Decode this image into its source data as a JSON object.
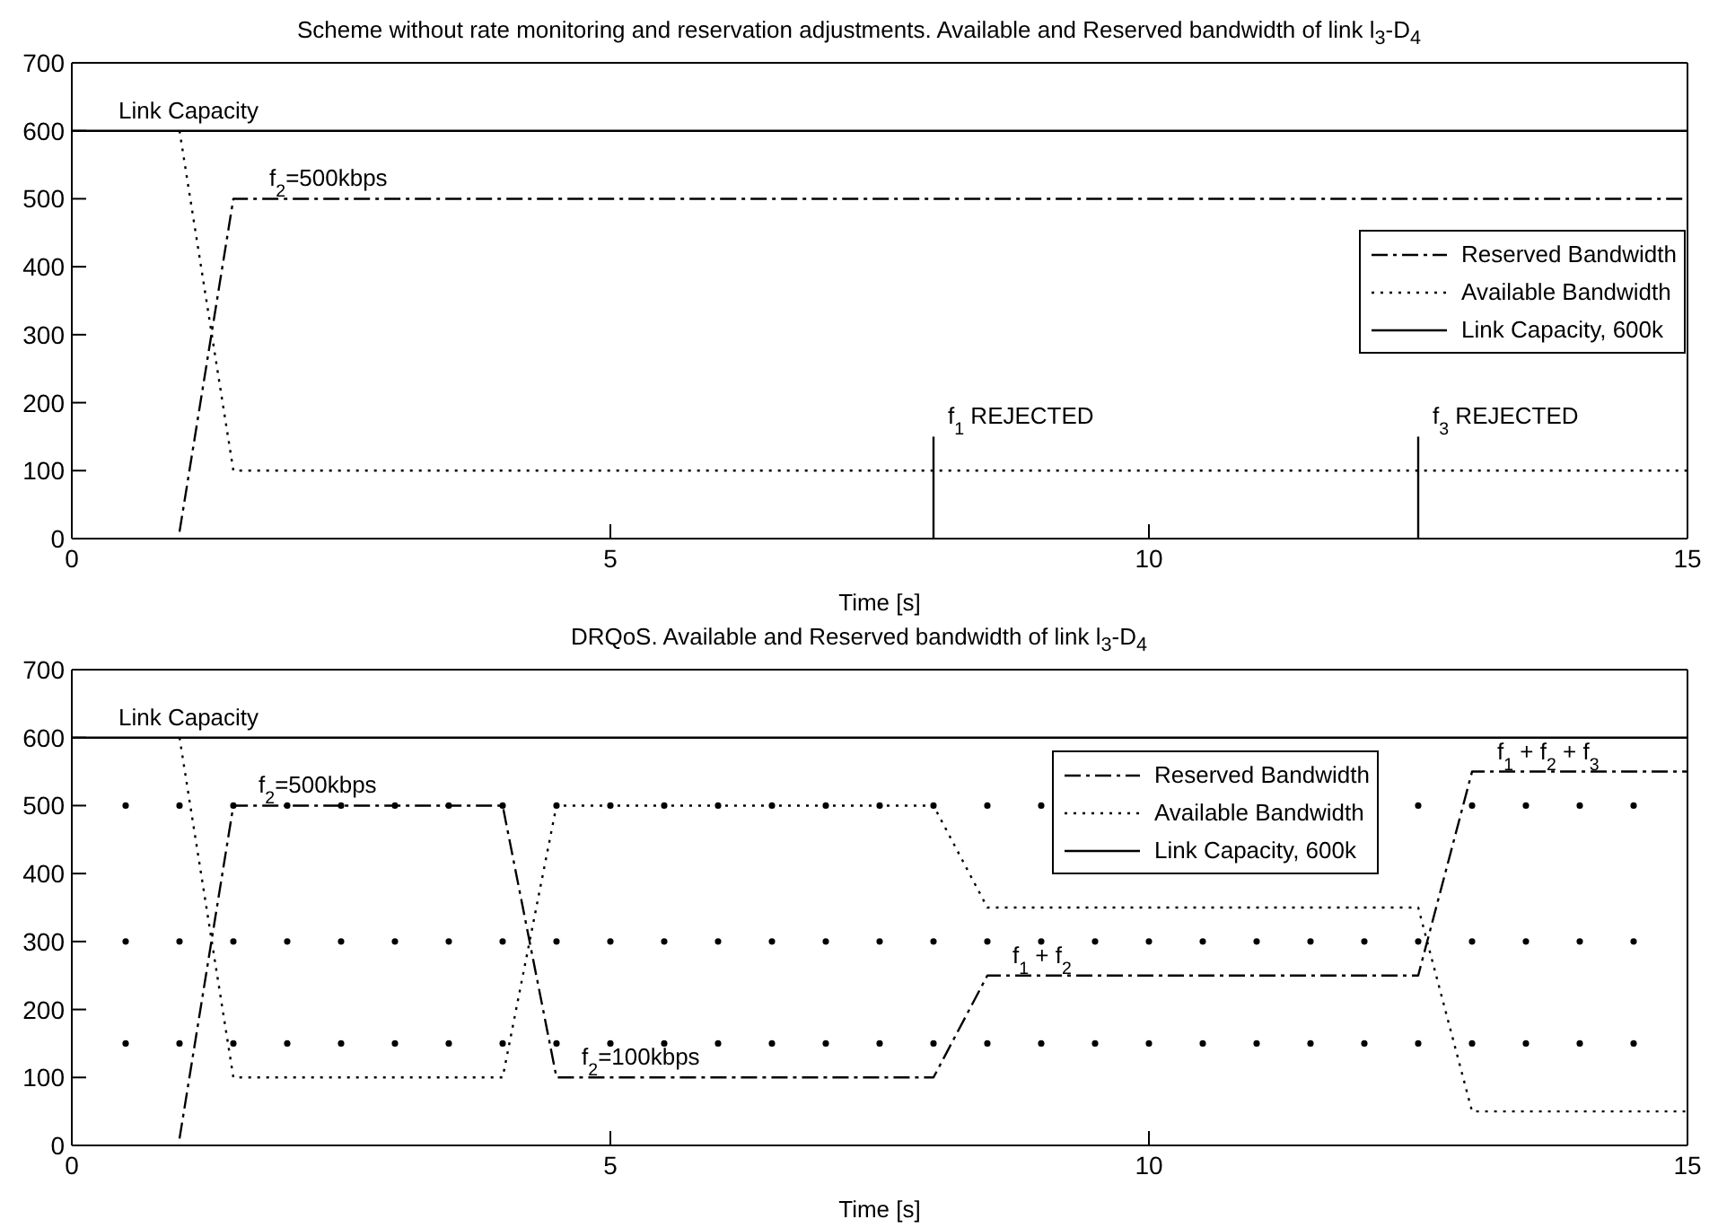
{
  "chart_data": [
    {
      "type": "line",
      "title": "Scheme without rate monitoring and reservation adjustments. Available and Reserved bandwidth of link l$_{3}$-D$_{4}$",
      "xlabel": "Time [s]",
      "xlim": [
        0,
        15
      ],
      "xticks": [
        0,
        5,
        10,
        15
      ],
      "ylim": [
        0,
        700
      ],
      "yticks": [
        0,
        100,
        200,
        300,
        400,
        500,
        600,
        700
      ],
      "legend": "top right",
      "series": [
        {
          "name": "Reserved Bandwidth",
          "color": "#000000",
          "line_style": "dashdot",
          "x": [
            1,
            1.5,
            15
          ],
          "values": [
            10,
            500,
            500
          ]
        },
        {
          "name": "Available Bandwidth",
          "color": "#000000",
          "line_style": "dotted",
          "x": [
            1,
            1.5,
            15
          ],
          "values": [
            600,
            100,
            100
          ]
        },
        {
          "name": "Link Capacity, 600k",
          "color": "#000000",
          "line_style": "solid",
          "x": [
            0,
            15
          ],
          "values": [
            600,
            600
          ]
        },
        {
          "color": "#000000",
          "line_style": "solid",
          "x": [
            8,
            8
          ],
          "values": [
            0,
            150
          ]
        },
        {
          "color": "#000000",
          "line_style": "solid",
          "x": [
            12.5,
            12.5
          ],
          "values": [
            0,
            150
          ]
        }
      ],
      "annotations": [
        {
          "text": "Link Capacity",
          "x": 0.3,
          "y": 600
        },
        {
          "text": "f$_{2}$=500kbps",
          "x": 1.7,
          "y": 500
        },
        {
          "text": "f$_{1}$ REJECTED",
          "x": 8,
          "y": 150
        },
        {
          "text": "f$_{3}$ REJECTED",
          "x": 12.5,
          "y": 150
        }
      ]
    },
    {
      "type": "line",
      "title": "DRQoS. Available and Reserved bandwidth of link l$_{3}$-D$_{4}$",
      "xlabel": "Time [s]",
      "xlim": [
        0,
        15
      ],
      "xticks": [
        0,
        5,
        10,
        15
      ],
      "ylim": [
        0,
        700
      ],
      "yticks": [
        0,
        100,
        200,
        300,
        400,
        500,
        600,
        700
      ],
      "legend": "top",
      "series": [
        {
          "name": "Reserved Bandwidth",
          "color": "#000000",
          "line_style": "dashdot",
          "x": [
            1,
            1.5,
            4,
            4.5,
            8,
            8.5,
            12.5,
            13,
            15
          ],
          "values": [
            10,
            500,
            500,
            100,
            100,
            250,
            250,
            550,
            550
          ]
        },
        {
          "name": "Available Bandwidth",
          "color": "#000000",
          "line_style": "dotted",
          "x": [
            1,
            1.5,
            4,
            4.5,
            8,
            8.5,
            12.5,
            13,
            15
          ],
          "values": [
            600,
            100,
            100,
            500,
            500,
            350,
            350,
            50,
            50
          ]
        },
        {
          "name": "Link Capacity, 600k",
          "color": "#000000",
          "line_style": "solid",
          "x": [
            0,
            15
          ],
          "values": [
            600,
            600
          ]
        },
        {
          "type": "scatter",
          "color": "#000000",
          "x": [
            0.5,
            1,
            1.5,
            2,
            2.5,
            3,
            3.5,
            4,
            4.5,
            5,
            5.5,
            6,
            6.5,
            7,
            7.5,
            8,
            8.5,
            9,
            9.5,
            10,
            10.5,
            11,
            11.5,
            12,
            12.5,
            13,
            13.5,
            14,
            14.5
          ],
          "values": [
            500,
            500,
            500,
            500,
            500,
            500,
            500,
            500,
            500,
            500,
            500,
            500,
            500,
            500,
            500,
            500,
            500,
            500,
            null,
            null,
            null,
            null,
            null,
            null,
            500,
            500,
            500,
            500,
            500
          ]
        },
        {
          "type": "scatter",
          "color": "#000000",
          "x": [
            0.5,
            1,
            1.5,
            2,
            2.5,
            3,
            3.5,
            4,
            4.5,
            5,
            5.5,
            6,
            6.5,
            7,
            7.5,
            8,
            8.5,
            9,
            9.5,
            10,
            10.5,
            11,
            11.5,
            12,
            12.5,
            13,
            13.5,
            14,
            14.5
          ],
          "values": [
            300,
            300,
            300,
            300,
            300,
            300,
            300,
            300,
            300,
            300,
            300,
            300,
            300,
            300,
            300,
            300,
            300,
            300,
            300,
            300,
            300,
            300,
            300,
            300,
            300,
            300,
            300,
            300,
            300
          ]
        },
        {
          "type": "scatter",
          "color": "#000000",
          "x": [
            0.5,
            1,
            1.5,
            2,
            2.5,
            3,
            3.5,
            4,
            4.5,
            5,
            5.5,
            6,
            6.5,
            7,
            7.5,
            8,
            8.5,
            9,
            9.5,
            10,
            10.5,
            11,
            11.5,
            12,
            12.5,
            13,
            13.5,
            14,
            14.5
          ],
          "values": [
            150,
            150,
            150,
            150,
            150,
            150,
            150,
            150,
            150,
            150,
            150,
            150,
            150,
            150,
            150,
            150,
            150,
            150,
            150,
            150,
            150,
            150,
            150,
            150,
            150,
            150,
            150,
            150,
            150
          ]
        }
      ],
      "annotations": [
        {
          "text": "Link Capacity",
          "x": 0.3,
          "y": 600
        },
        {
          "text": "f$_{2}$=500kbps",
          "x": 1.6,
          "y": 500
        },
        {
          "text": "f$_{2}$=100kbps",
          "x": 4.6,
          "y": 100
        },
        {
          "text": "f$_{1}$ + f$_{2}$",
          "x": 8.6,
          "y": 250
        },
        {
          "text": "f$_{1}$ + f$_{2}$ + f$_{3}$",
          "x": 13.1,
          "y": 550
        }
      ]
    }
  ]
}
